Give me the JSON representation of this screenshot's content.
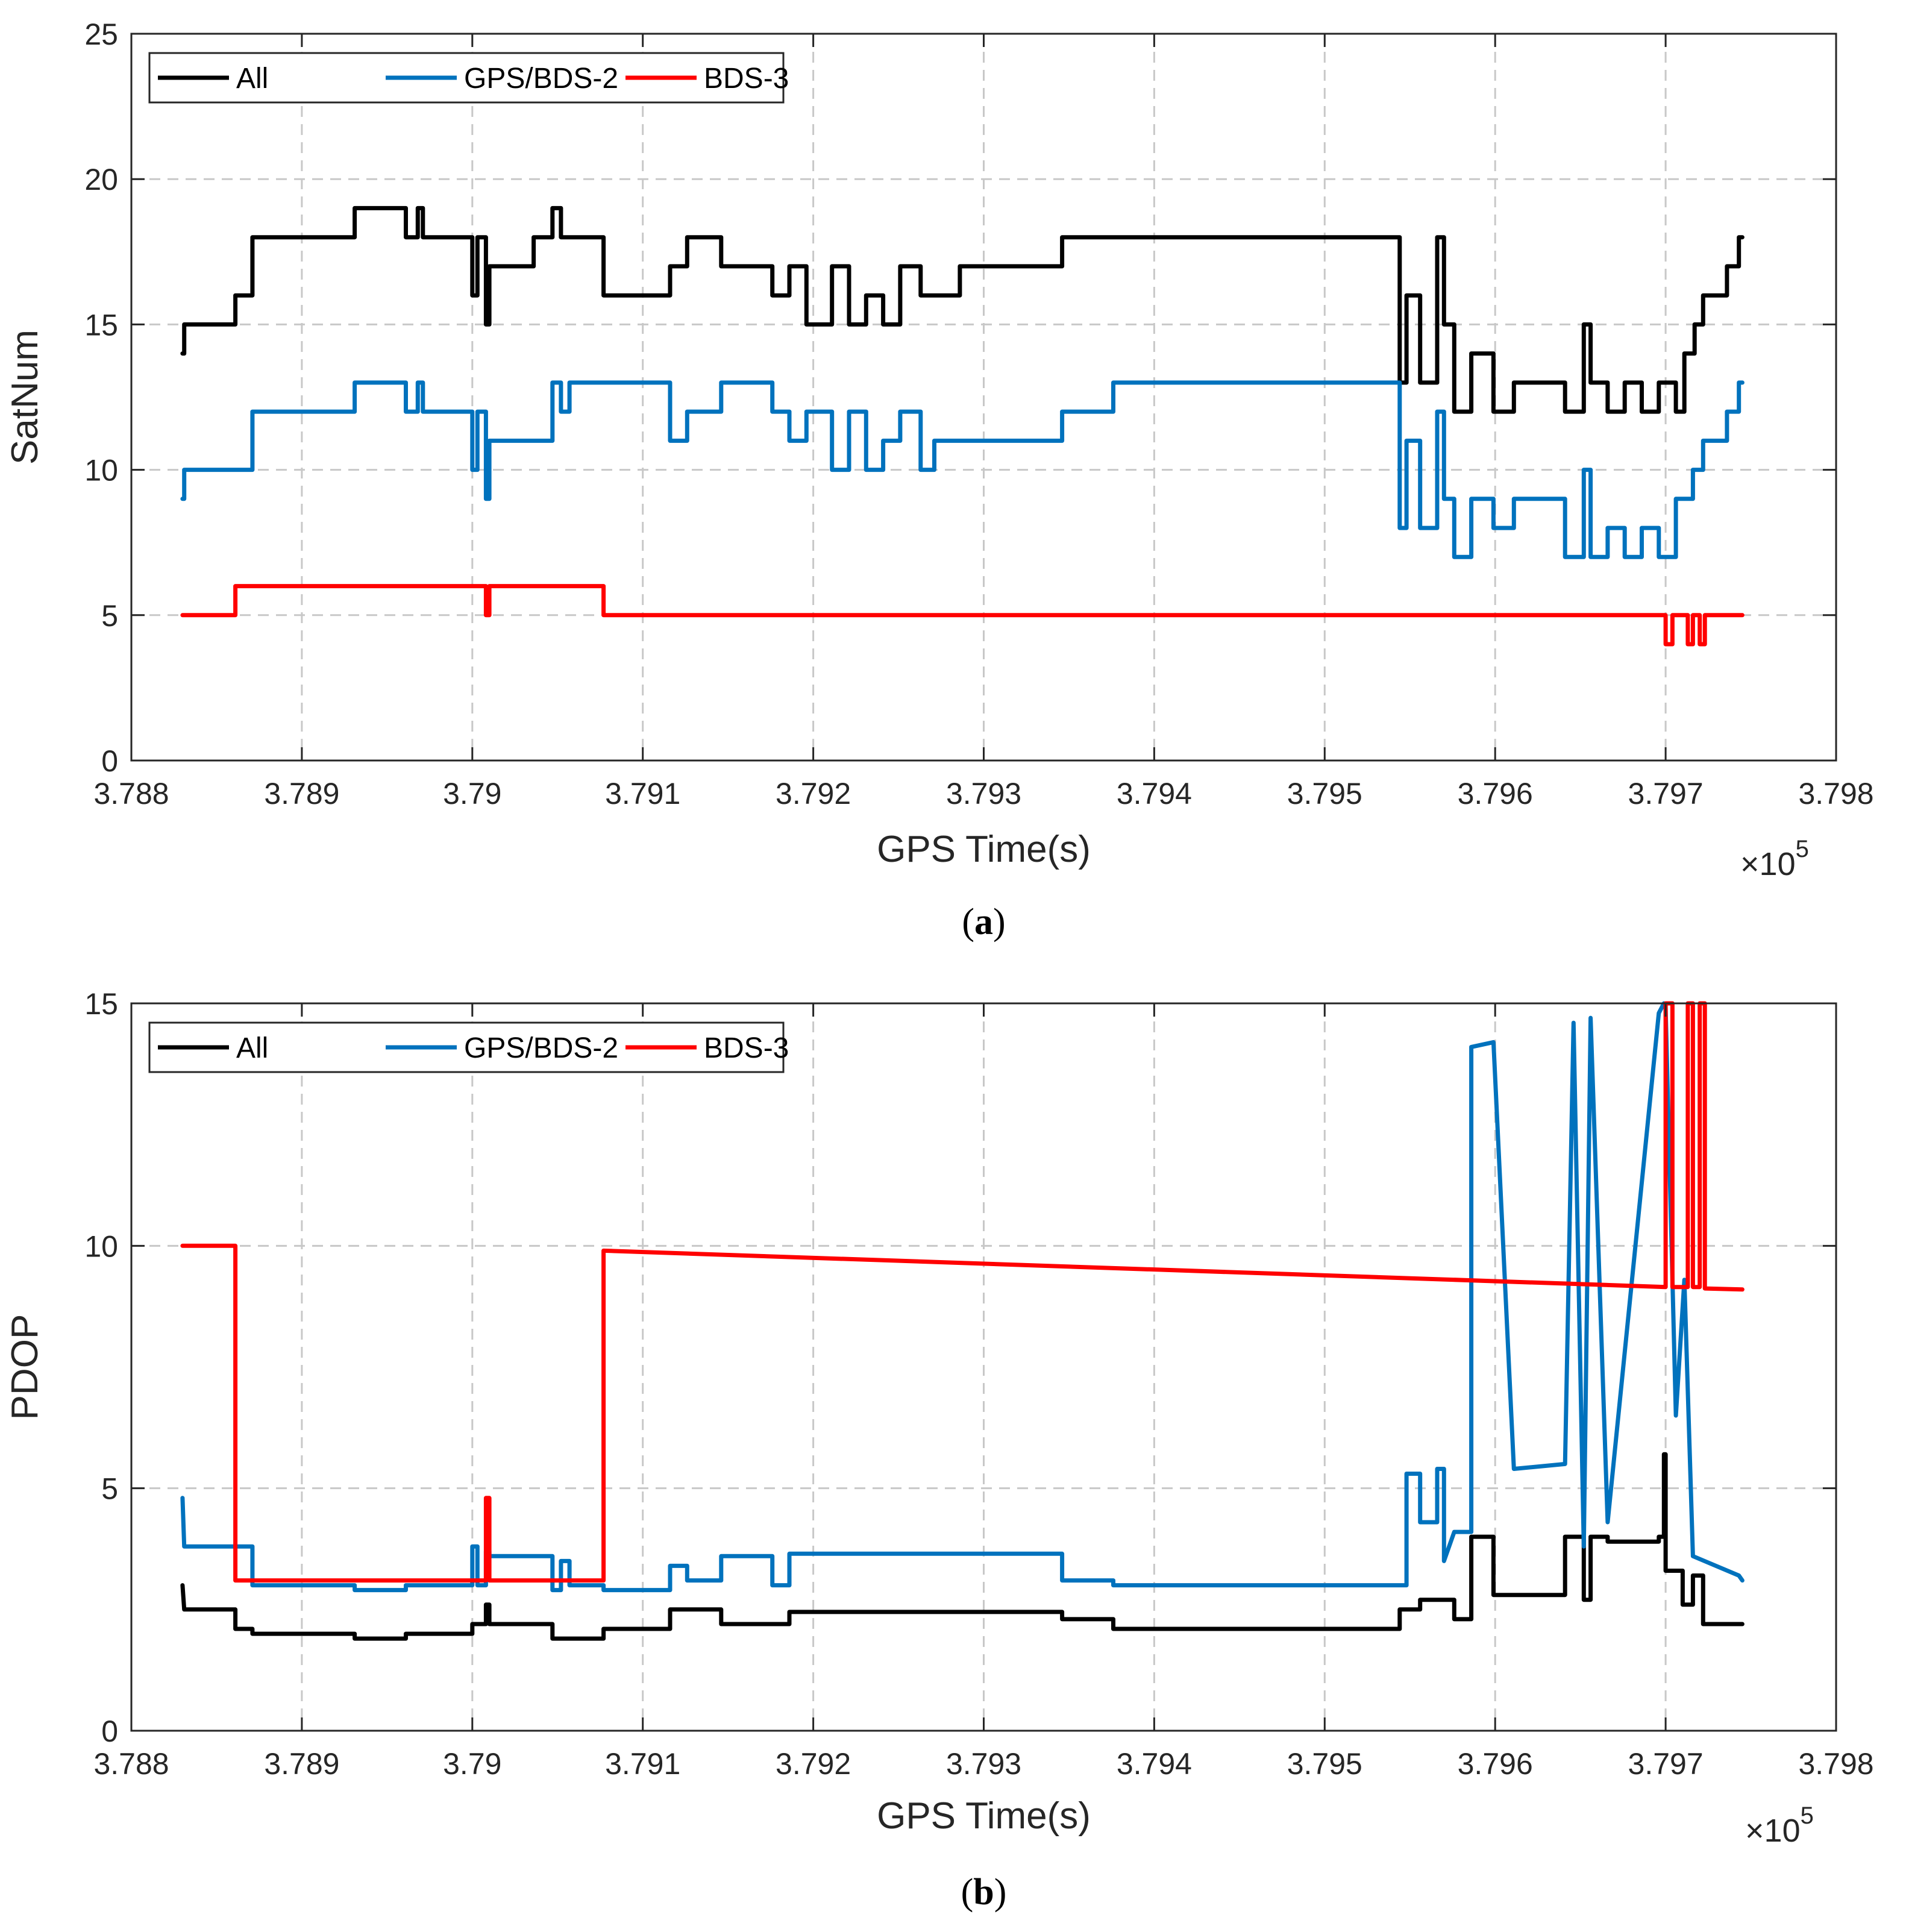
{
  "chart_data": [
    {
      "type": "line",
      "panel": "a",
      "caption_letter": "a",
      "ylabel": "SatNum",
      "xlabel": "GPS Time(s)",
      "x_multiplier_base": "×10",
      "x_multiplier_exp": "5",
      "xlim": [
        3.788,
        3.798
      ],
      "ylim": [
        0,
        25
      ],
      "xticks": [
        3.788,
        3.789,
        3.79,
        3.791,
        3.792,
        3.793,
        3.794,
        3.795,
        3.796,
        3.797,
        3.798
      ],
      "xtick_labels": [
        "3.788",
        "3.789",
        "3.79",
        "3.791",
        "3.792",
        "3.793",
        "3.794",
        "3.795",
        "3.796",
        "3.797",
        "3.798"
      ],
      "yticks": [
        0,
        5,
        10,
        15,
        20,
        25
      ],
      "ytick_labels": [
        "0",
        "5",
        "10",
        "15",
        "20",
        "25"
      ],
      "grid": true,
      "legend_position": "top-left",
      "series": [
        {
          "name": "All",
          "color": "#000000",
          "x": [
            3.7883,
            3.7883,
            3.78831,
            3.78831,
            3.78861,
            3.78861,
            3.78871,
            3.78871,
            3.78891,
            3.78891,
            3.78931,
            3.78931,
            3.78961,
            3.78961,
            3.78968,
            3.78968,
            3.78971,
            3.78971,
            3.78976,
            3.78976,
            3.79,
            3.79,
            3.79003,
            3.79003,
            3.79008,
            3.79008,
            3.7901,
            3.7901,
            3.79036,
            3.79036,
            3.79047,
            3.79047,
            3.79052,
            3.79052,
            3.79057,
            3.79057,
            3.79077,
            3.79077,
            3.79116,
            3.79116,
            3.79126,
            3.79126,
            3.79146,
            3.79146,
            3.79176,
            3.79176,
            3.79186,
            3.79186,
            3.79196,
            3.79196,
            3.79211,
            3.79211,
            3.79221,
            3.79221,
            3.79231,
            3.79231,
            3.79241,
            3.79241,
            3.79251,
            3.79251,
            3.79263,
            3.79263,
            3.79271,
            3.79271,
            3.79286,
            3.79286,
            3.79346,
            3.79346,
            3.79376,
            3.79376,
            3.79544,
            3.79544,
            3.79548,
            3.79548,
            3.79556,
            3.79556,
            3.79566,
            3.79566,
            3.7957,
            3.7957,
            3.79576,
            3.79576,
            3.79586,
            3.79586,
            3.79599,
            3.79599,
            3.79611,
            3.79611,
            3.79641,
            3.79641,
            3.79652,
            3.79652,
            3.79656,
            3.79656,
            3.79666,
            3.79666,
            3.79676,
            3.79676,
            3.79686,
            3.79686,
            3.79696,
            3.79696,
            3.79706,
            3.79706,
            3.79711,
            3.79711,
            3.79717,
            3.79717,
            3.79722,
            3.79722,
            3.79736,
            3.79736,
            3.79743,
            3.79743,
            3.79745
          ],
          "y": [
            14,
            14,
            14,
            15,
            15,
            16,
            16,
            18,
            18,
            18,
            18,
            19,
            19,
            18,
            18,
            19,
            19,
            18,
            18,
            18,
            18,
            16,
            16,
            18,
            18,
            15,
            15,
            17,
            17,
            18,
            18,
            19,
            19,
            18,
            18,
            18,
            18,
            16,
            16,
            17,
            17,
            18,
            18,
            17,
            17,
            16,
            16,
            17,
            17,
            15,
            15,
            17,
            17,
            15,
            15,
            16,
            16,
            15,
            15,
            17,
            17,
            16,
            16,
            16,
            16,
            17,
            17,
            18,
            18,
            18,
            18,
            13,
            13,
            16,
            16,
            13,
            13,
            18,
            18,
            15,
            15,
            12,
            12,
            14,
            14,
            12,
            12,
            13,
            13,
            12,
            12,
            15,
            15,
            13,
            13,
            12,
            12,
            13,
            13,
            12,
            12,
            13,
            13,
            12,
            12,
            14,
            14,
            15,
            15,
            16,
            16,
            17,
            17,
            18,
            18
          ]
        },
        {
          "name": "GPS/BDS-2",
          "color": "#0072BD",
          "x": [
            3.7883,
            3.7883,
            3.78831,
            3.78831,
            3.78871,
            3.78871,
            3.78931,
            3.78931,
            3.78961,
            3.78961,
            3.78968,
            3.78968,
            3.78971,
            3.78971,
            3.79,
            3.79,
            3.79003,
            3.79003,
            3.79008,
            3.79008,
            3.7901,
            3.7901,
            3.79047,
            3.79047,
            3.79052,
            3.79052,
            3.79057,
            3.79057,
            3.79077,
            3.79077,
            3.79116,
            3.79116,
            3.79126,
            3.79126,
            3.79146,
            3.79146,
            3.79176,
            3.79176,
            3.79186,
            3.79186,
            3.79196,
            3.79196,
            3.79211,
            3.79211,
            3.79221,
            3.79221,
            3.79231,
            3.79231,
            3.79241,
            3.79241,
            3.79251,
            3.79251,
            3.79263,
            3.79263,
            3.79271,
            3.79271,
            3.79286,
            3.79286,
            3.79346,
            3.79346,
            3.79376,
            3.79376,
            3.79544,
            3.79544,
            3.79548,
            3.79548,
            3.79556,
            3.79556,
            3.79566,
            3.79566,
            3.7957,
            3.7957,
            3.79576,
            3.79576,
            3.79586,
            3.79586,
            3.79599,
            3.79599,
            3.79611,
            3.79611,
            3.79641,
            3.79641,
            3.79652,
            3.79652,
            3.79656,
            3.79656,
            3.79666,
            3.79666,
            3.79676,
            3.79676,
            3.79686,
            3.79686,
            3.79696,
            3.79696,
            3.79706,
            3.79706,
            3.79716,
            3.79716,
            3.79722,
            3.79722,
            3.79736,
            3.79736,
            3.79743,
            3.79743,
            3.79745
          ],
          "y": [
            9,
            9,
            9,
            10,
            10,
            12,
            12,
            13,
            13,
            12,
            12,
            13,
            13,
            12,
            12,
            10,
            10,
            12,
            12,
            9,
            9,
            11,
            11,
            13,
            13,
            12,
            12,
            13,
            13,
            13,
            13,
            11,
            11,
            12,
            12,
            13,
            13,
            12,
            12,
            11,
            11,
            12,
            12,
            10,
            10,
            12,
            12,
            10,
            10,
            11,
            11,
            12,
            12,
            10,
            10,
            11,
            11,
            11,
            11,
            12,
            12,
            13,
            13,
            8,
            8,
            11,
            11,
            8,
            8,
            12,
            12,
            9,
            9,
            7,
            7,
            9,
            9,
            8,
            8,
            9,
            9,
            7,
            7,
            10,
            10,
            7,
            7,
            8,
            8,
            7,
            7,
            8,
            8,
            7,
            7,
            9,
            9,
            10,
            10,
            11,
            11,
            12,
            12,
            13,
            13
          ]
        },
        {
          "name": "BDS-3",
          "color": "#FF0000",
          "x": [
            3.7883,
            3.78861,
            3.78861,
            3.79008,
            3.79008,
            3.7901,
            3.7901,
            3.79077,
            3.79077,
            3.797,
            3.797,
            3.79704,
            3.79704,
            3.79713,
            3.79713,
            3.79716,
            3.79716,
            3.7972,
            3.7972,
            3.79723,
            3.79723,
            3.79745
          ],
          "y": [
            5,
            5,
            6,
            6,
            5,
            5,
            6,
            6,
            5,
            5,
            4,
            4,
            5,
            5,
            4,
            4,
            5,
            5,
            4,
            4,
            5,
            5
          ]
        }
      ]
    },
    {
      "type": "line",
      "panel": "b",
      "caption_letter": "b",
      "ylabel": "PDOP",
      "xlabel": "GPS Time(s)",
      "x_multiplier_base": "×10",
      "x_multiplier_exp": "5",
      "xlim": [
        3.788,
        3.798
      ],
      "ylim": [
        0,
        15
      ],
      "xticks": [
        3.788,
        3.789,
        3.79,
        3.791,
        3.792,
        3.793,
        3.794,
        3.795,
        3.796,
        3.797,
        3.798
      ],
      "xtick_labels": [
        "3.788",
        "3.789",
        "3.79",
        "3.791",
        "3.792",
        "3.793",
        "3.794",
        "3.795",
        "3.796",
        "3.797",
        "3.798"
      ],
      "yticks": [
        0,
        5,
        10,
        15
      ],
      "ytick_labels": [
        "0",
        "5",
        "10",
        "15"
      ],
      "grid": true,
      "legend_position": "top-left",
      "series": [
        {
          "name": "All",
          "color": "#000000",
          "x": [
            3.7883,
            3.7883,
            3.78831,
            3.78861,
            3.78861,
            3.78871,
            3.78871,
            3.78931,
            3.78931,
            3.78961,
            3.78961,
            3.79,
            3.79,
            3.79008,
            3.79008,
            3.7901,
            3.7901,
            3.79047,
            3.79047,
            3.79077,
            3.79077,
            3.79116,
            3.79116,
            3.79146,
            3.79146,
            3.79186,
            3.79186,
            3.79346,
            3.79346,
            3.79376,
            3.79376,
            3.79544,
            3.79544,
            3.79556,
            3.79556,
            3.79576,
            3.79576,
            3.79586,
            3.79586,
            3.79599,
            3.79599,
            3.79611,
            3.79611,
            3.79641,
            3.79641,
            3.79652,
            3.79652,
            3.79656,
            3.79656,
            3.79666,
            3.79666,
            3.79696,
            3.79696,
            3.79699,
            3.79699,
            3.797,
            3.797,
            3.7971,
            3.7971,
            3.79716,
            3.79716,
            3.79722,
            3.79722,
            3.79745
          ],
          "y": [
            3.0,
            3.0,
            2.5,
            2.5,
            2.1,
            2.1,
            2.0,
            2.0,
            1.9,
            1.9,
            2.0,
            2.0,
            2.2,
            2.2,
            2.6,
            2.6,
            2.2,
            2.2,
            1.9,
            1.9,
            2.1,
            2.1,
            2.5,
            2.5,
            2.2,
            2.2,
            2.45,
            2.45,
            2.3,
            2.3,
            2.1,
            2.1,
            2.5,
            2.5,
            2.7,
            2.7,
            2.3,
            2.3,
            4.0,
            4.0,
            2.8,
            2.8,
            2.8,
            2.8,
            4.0,
            4.0,
            2.7,
            2.7,
            4.0,
            4.0,
            3.9,
            3.9,
            4.0,
            4.0,
            5.7,
            5.7,
            3.3,
            3.3,
            2.6,
            2.6,
            3.2,
            3.2,
            2.2,
            2.2
          ]
        },
        {
          "name": "GPS/BDS-2",
          "color": "#0072BD",
          "x": [
            3.7883,
            3.7883,
            3.78831,
            3.78871,
            3.78871,
            3.78931,
            3.78931,
            3.78961,
            3.78961,
            3.79,
            3.79,
            3.79003,
            3.79003,
            3.79008,
            3.79008,
            3.7901,
            3.7901,
            3.79047,
            3.79047,
            3.79052,
            3.79052,
            3.79057,
            3.79057,
            3.79077,
            3.79077,
            3.79116,
            3.79116,
            3.79126,
            3.79126,
            3.79146,
            3.79146,
            3.79176,
            3.79176,
            3.79186,
            3.79186,
            3.79346,
            3.79346,
            3.79376,
            3.79376,
            3.79544,
            3.79544,
            3.79548,
            3.79548,
            3.79556,
            3.79556,
            3.79566,
            3.79566,
            3.7957,
            3.7957,
            3.79576,
            3.79586,
            3.79586,
            3.79599,
            3.79599,
            3.79611,
            3.79611,
            3.79641,
            3.79641,
            3.79646,
            3.79646,
            3.79652,
            3.79652,
            3.79656,
            3.79656,
            3.79666,
            3.79666,
            3.79696,
            3.79696,
            3.79699,
            3.79699,
            3.797,
            3.797,
            3.79706,
            3.79706,
            3.79711,
            3.79711,
            3.79716,
            3.79716,
            3.79743,
            3.79743,
            3.79745
          ],
          "y": [
            4.8,
            4.8,
            3.8,
            3.8,
            3.0,
            3.0,
            2.9,
            2.9,
            3.0,
            3.0,
            3.8,
            3.8,
            3.0,
            3.0,
            3.7,
            3.7,
            3.6,
            3.6,
            2.9,
            2.9,
            3.5,
            3.5,
            3.0,
            3.0,
            2.9,
            2.9,
            3.4,
            3.4,
            3.1,
            3.1,
            3.6,
            3.6,
            3.0,
            3.0,
            3.65,
            3.65,
            3.1,
            3.1,
            3.0,
            3.0,
            3.0,
            3.0,
            5.3,
            5.3,
            4.3,
            4.3,
            5.4,
            5.4,
            3.5,
            4.1,
            4.1,
            14.1,
            14.2,
            14.2,
            5.4,
            5.4,
            5.5,
            5.5,
            14.6,
            14.6,
            3.8,
            3.8,
            14.7,
            14.7,
            4.3,
            4.3,
            14.8,
            14.8,
            15.0,
            15.0,
            14.9,
            14.9,
            6.5,
            6.5,
            9.3,
            9.3,
            3.6,
            3.6,
            3.2,
            3.2,
            3.1
          ]
        },
        {
          "name": "BDS-3",
          "color": "#FF0000",
          "x": [
            3.7883,
            3.78861,
            3.78861,
            3.79008,
            3.79008,
            3.7901,
            3.7901,
            3.79077,
            3.79077,
            3.797,
            3.797,
            3.79704,
            3.79704,
            3.79713,
            3.79713,
            3.79716,
            3.79716,
            3.7972,
            3.7972,
            3.79723,
            3.79723,
            3.79745
          ],
          "y": [
            10.0,
            10.0,
            3.1,
            3.1,
            4.8,
            4.8,
            3.1,
            3.1,
            9.9,
            9.15,
            15.0,
            15.0,
            9.15,
            9.15,
            15.0,
            15.0,
            9.15,
            9.15,
            15.0,
            15.0,
            9.12,
            9.1
          ]
        }
      ]
    }
  ]
}
